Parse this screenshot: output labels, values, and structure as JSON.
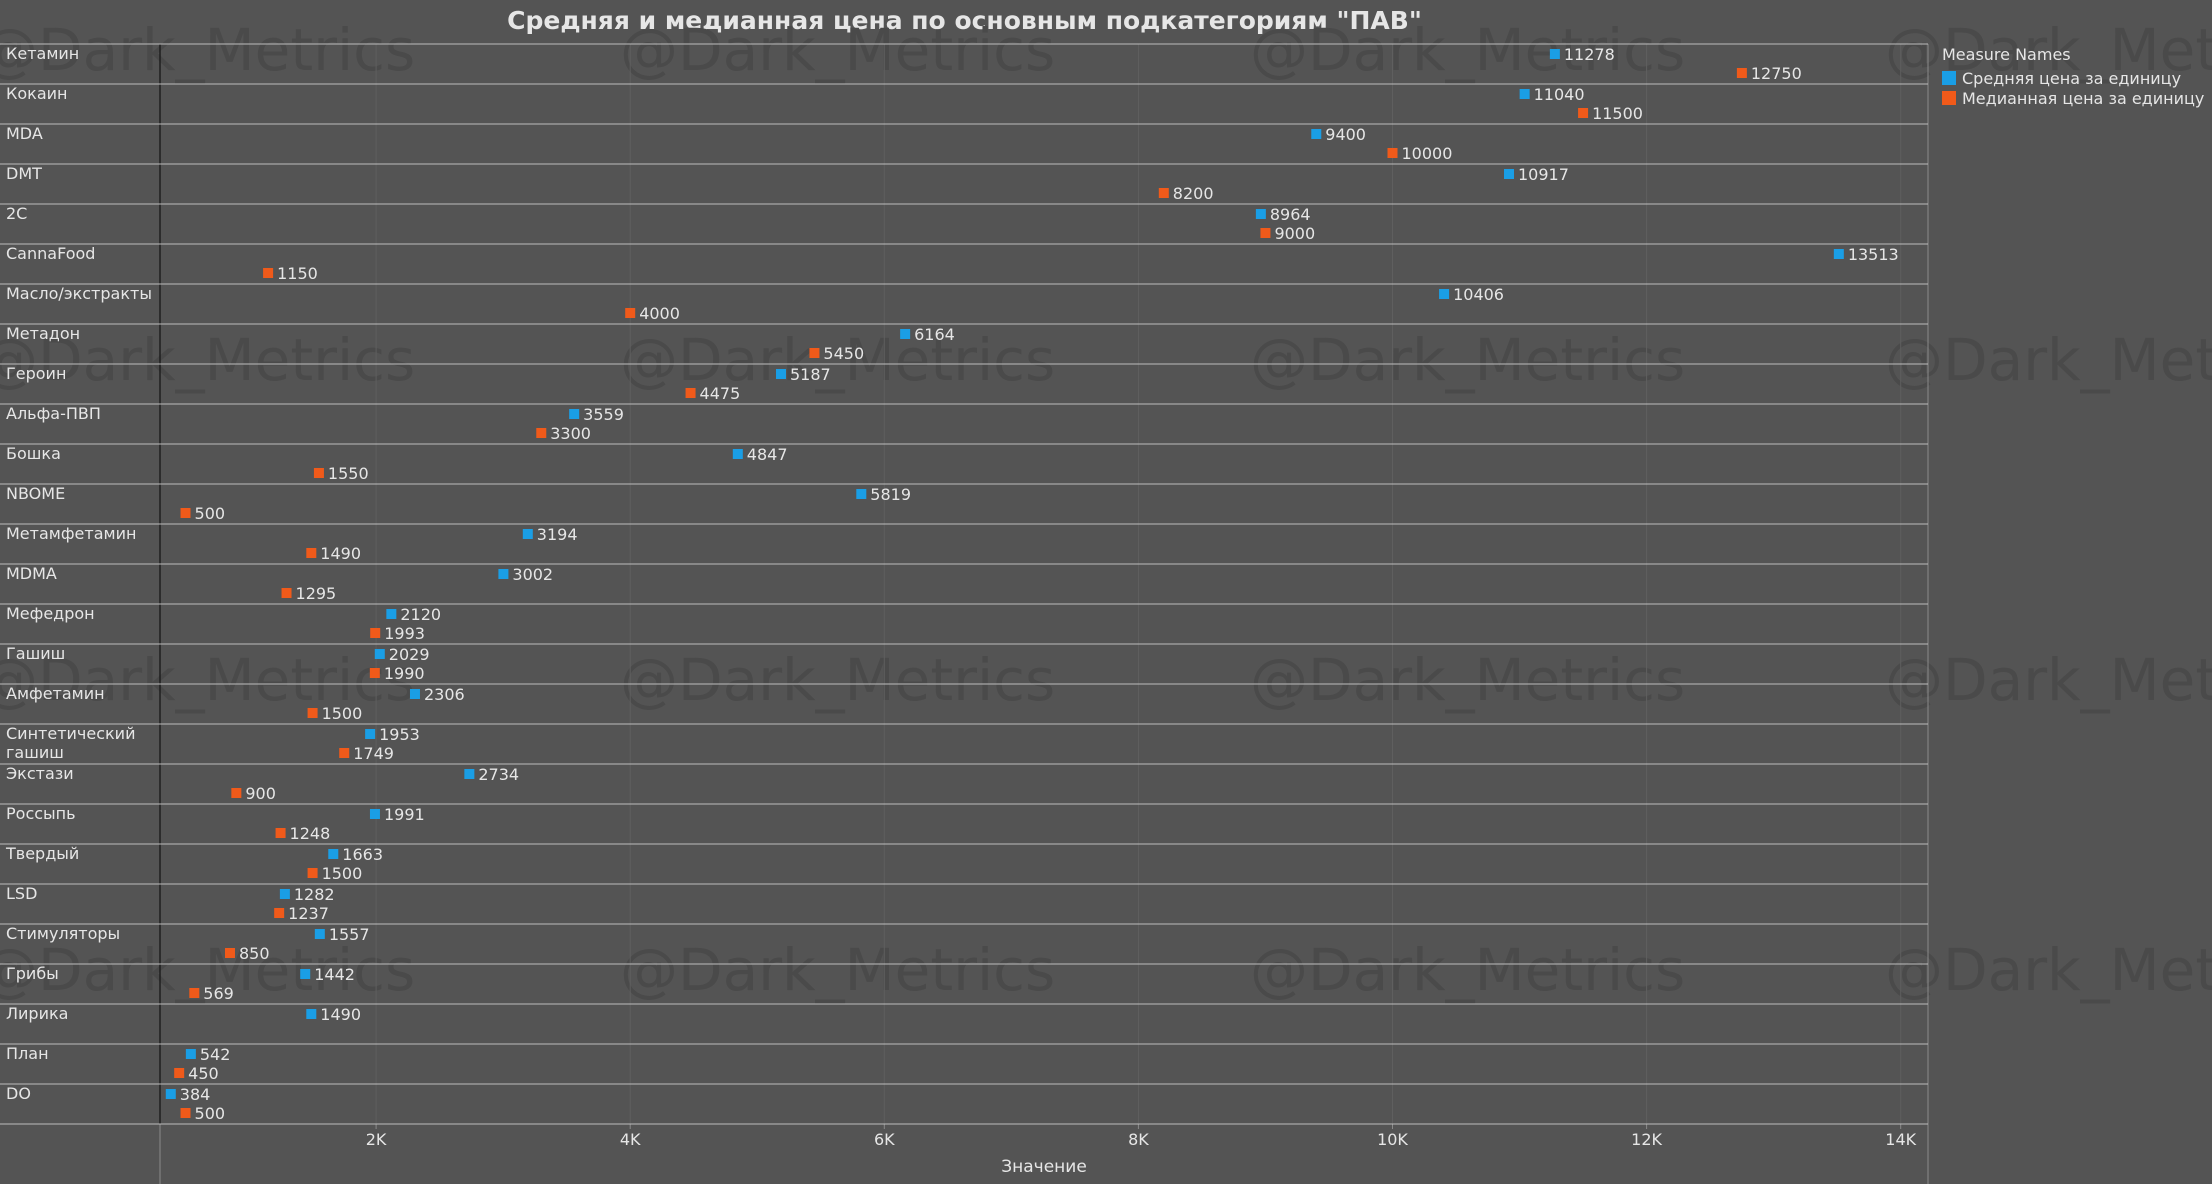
{
  "chart_data": {
    "type": "scatter",
    "title": "Средняя и медианная цена по основным подкатегориям \"ПАВ\"",
    "xlabel": "Значение",
    "xlim": [
      0,
      14000
    ],
    "x_ticks": [
      2000,
      4000,
      6000,
      8000,
      10000,
      12000,
      14000
    ],
    "x_tick_labels": [
      "2K",
      "4K",
      "6K",
      "8K",
      "10K",
      "12K",
      "14K"
    ],
    "legend": {
      "title": "Measure Names",
      "placement": "top-right"
    },
    "watermark": "@Dark_Metrics",
    "categories": [
      "Кетамин",
      "Кокаин",
      "MDA",
      "DMT",
      "2C",
      "CannaFood",
      "Масло/экстракты",
      "Метадон",
      "Героин",
      "Альфа-ПВП",
      "Бошка",
      "NBOME",
      "Метамфетамин",
      "MDMA",
      "Мефедрон",
      "Гашиш",
      "Амфетамин",
      "Синтетический гашиш",
      "Экстази",
      "Россыпь",
      "Твердый",
      "LSD",
      "Стимуляторы",
      "Грибы",
      "Лирика",
      "План",
      "DO"
    ],
    "series": [
      {
        "name": "Средняя цена за единицу",
        "color": "#1a9ee5",
        "values": [
          11278,
          11040,
          9400,
          10917,
          8964,
          13513,
          10406,
          6164,
          5187,
          3559,
          4847,
          5819,
          3194,
          3002,
          2120,
          2029,
          2306,
          1953,
          2734,
          1991,
          1663,
          1282,
          1557,
          1442,
          1490,
          542,
          384
        ]
      },
      {
        "name": "Медианная цена за единицу",
        "color": "#f05a1a",
        "values": [
          12750,
          11500,
          10000,
          8200,
          9000,
          1150,
          4000,
          5450,
          4475,
          3300,
          1550,
          500,
          1490,
          1295,
          1993,
          1990,
          1500,
          1749,
          900,
          1248,
          1500,
          1237,
          850,
          569,
          null,
          450,
          500
        ]
      }
    ]
  },
  "colors": {
    "background": "#545454",
    "text": "#e6e6e6",
    "row_line": "#bdbdbd"
  }
}
